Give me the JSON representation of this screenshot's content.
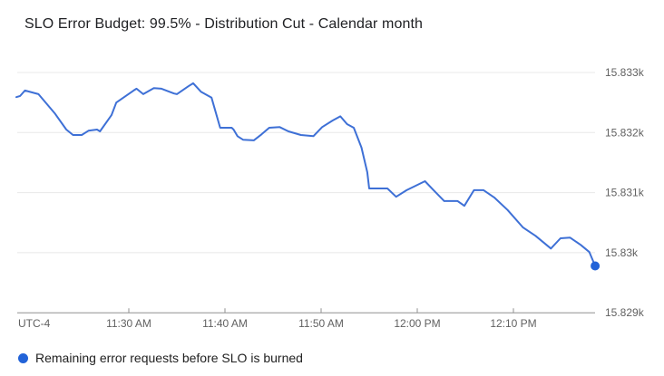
{
  "title": "SLO Error Budget: 99.5% - Distribution Cut - Calendar month",
  "legend": {
    "items": [
      {
        "label": "Remaining error requests before SLO is burned",
        "marker_color": "#2263d8"
      }
    ]
  },
  "colors": {
    "line": "#3e70d6",
    "endpoint_dot": "#2263d8",
    "gridline": "#e8e8e8",
    "axis_line": "#909090",
    "axis_label": "#616161",
    "title_text": "#202124"
  },
  "chart_data": {
    "type": "line",
    "title": "SLO Error Budget: 99.5% - Distribution Cut - Calendar month",
    "xlabel": "",
    "ylabel": "",
    "grid": true,
    "legend_position": "bottom",
    "x_axis": {
      "note": "UTC-4",
      "units": "minutes after 11:00 AM",
      "range_minutes": [
        18.3,
        78.5
      ],
      "ticks": [
        {
          "m": 30,
          "label": "11:30 AM"
        },
        {
          "m": 40,
          "label": "11:40 AM"
        },
        {
          "m": 50,
          "label": "11:50 AM"
        },
        {
          "m": 60,
          "label": "12:00 PM"
        },
        {
          "m": 70,
          "label": "12:10 PM"
        }
      ]
    },
    "y_axis": {
      "side": "right",
      "range": [
        15828.9,
        15833.2
      ],
      "ticks": [
        {
          "v": 15833,
          "label": "15.833k"
        },
        {
          "v": 15832,
          "label": "15.832k"
        },
        {
          "v": 15831,
          "label": "15.831k"
        },
        {
          "v": 15830,
          "label": "15.83k"
        },
        {
          "v": 15829,
          "label": "15.829k"
        }
      ]
    },
    "series": [
      {
        "name": "Remaining error requests before SLO is burned",
        "color": "#3e70d6",
        "endpoint_color": "#2263d8",
        "endpoint_marker": true,
        "points": [
          [
            18.3,
            15832.59
          ],
          [
            18.7,
            15832.61
          ],
          [
            19.2,
            15832.7
          ],
          [
            19.9,
            15832.67
          ],
          [
            20.6,
            15832.64
          ],
          [
            22.3,
            15832.32
          ],
          [
            23.5,
            15832.05
          ],
          [
            24.2,
            15831.96
          ],
          [
            25.1,
            15831.96
          ],
          [
            25.8,
            15832.03
          ],
          [
            26.7,
            15832.05
          ],
          [
            27.0,
            15832.02
          ],
          [
            28.2,
            15832.29
          ],
          [
            28.7,
            15832.5
          ],
          [
            30.5,
            15832.7
          ],
          [
            30.8,
            15832.73
          ],
          [
            31.5,
            15832.64
          ],
          [
            32.6,
            15832.74
          ],
          [
            33.4,
            15832.73
          ],
          [
            34.7,
            15832.65
          ],
          [
            35.0,
            15832.64
          ],
          [
            36.2,
            15832.77
          ],
          [
            36.7,
            15832.82
          ],
          [
            37.5,
            15832.68
          ],
          [
            38.6,
            15832.58
          ],
          [
            39.5,
            15832.08
          ],
          [
            40.7,
            15832.08
          ],
          [
            40.9,
            15832.05
          ],
          [
            41.3,
            15831.94
          ],
          [
            41.9,
            15831.88
          ],
          [
            43.0,
            15831.87
          ],
          [
            43.8,
            15831.97
          ],
          [
            44.6,
            15832.08
          ],
          [
            45.7,
            15832.09
          ],
          [
            46.6,
            15832.02
          ],
          [
            47.9,
            15831.96
          ],
          [
            49.2,
            15831.94
          ],
          [
            50.1,
            15832.09
          ],
          [
            51.2,
            15832.2
          ],
          [
            52.0,
            15832.27
          ],
          [
            52.7,
            15832.14
          ],
          [
            53.4,
            15832.08
          ],
          [
            54.2,
            15831.75
          ],
          [
            54.8,
            15831.34
          ],
          [
            55.0,
            15831.07
          ],
          [
            56.9,
            15831.07
          ],
          [
            57.8,
            15830.93
          ],
          [
            58.9,
            15831.04
          ],
          [
            60.8,
            15831.19
          ],
          [
            61.7,
            15831.04
          ],
          [
            62.8,
            15830.86
          ],
          [
            64.2,
            15830.86
          ],
          [
            64.9,
            15830.78
          ],
          [
            65.9,
            15831.04
          ],
          [
            66.9,
            15831.04
          ],
          [
            68.0,
            15830.92
          ],
          [
            69.4,
            15830.71
          ],
          [
            71.0,
            15830.42
          ],
          [
            72.3,
            15830.28
          ],
          [
            73.9,
            15830.07
          ],
          [
            74.9,
            15830.24
          ],
          [
            75.9,
            15830.25
          ],
          [
            77.0,
            15830.13
          ],
          [
            77.9,
            15830.01
          ],
          [
            78.5,
            15829.78
          ]
        ]
      }
    ]
  }
}
